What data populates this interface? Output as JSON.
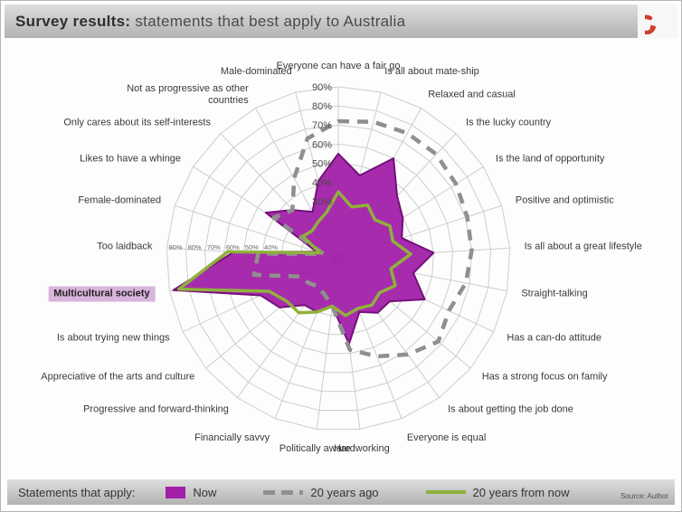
{
  "header": {
    "title_bold": "Survey results:",
    "title_rest": " statements that best apply to Australia"
  },
  "logo": {
    "color": "#cf3e2e"
  },
  "chart_data": {
    "type": "radar",
    "title": "Survey results: statements that best apply to Australia",
    "max": 90,
    "rings": [
      10,
      20,
      30,
      40,
      50,
      60,
      70,
      80,
      90
    ],
    "axis_ticks_top": [
      "90%",
      "80%",
      "70%",
      "60%",
      "50%",
      "40%",
      "30%"
    ],
    "axis_ticks_left": [
      "90%",
      "80%",
      "70%",
      "60%",
      "50%",
      "40%"
    ],
    "grid": true,
    "legend_position": "bottom",
    "highlighted_category": "Multicultural society",
    "categories": [
      "Everyone can have a fair go",
      "Is all about mate-ship",
      "Relaxed and casual",
      "Is the lucky country",
      "Is the land of opportunity",
      "Positive and optimistic",
      "Is all about a great lifestyle",
      "Straight-talking",
      "Has a can-do attitude",
      "Has a strong focus on family",
      "Is about getting the job done",
      "Everyone is equal",
      "Hardworking",
      "Politically aware",
      "Financially savvy",
      "Progressive and forward-thinking",
      "Appreciative of the arts and culture",
      "Is about trying new things",
      "Multicultural society",
      "Too laidback",
      "Female-dominated",
      "Likes to have a whinge",
      "Only cares about its self-interests",
      "Not as progressive as other countries",
      "Male-dominated"
    ],
    "series": [
      {
        "name": "Now",
        "style": "filled",
        "color": "#a21fa8",
        "stroke": "#741079",
        "values": [
          55,
          45,
          60,
          45,
          40,
          35,
          50,
          40,
          50,
          35,
          35,
          30,
          45,
          25,
          30,
          30,
          40,
          45,
          88,
          55,
          12,
          45,
          35,
          28,
          42
        ]
      },
      {
        "name": "20 years ago",
        "style": "dashed",
        "color": "#8f8f8f",
        "values": [
          72,
          74,
          75,
          75,
          73,
          71,
          70,
          68,
          64,
          68,
          62,
          55,
          48,
          25,
          20,
          18,
          20,
          22,
          45,
          42,
          8,
          40,
          35,
          48,
          65
        ]
      },
      {
        "name": "20 years from now",
        "style": "line",
        "color": "#8fb03c",
        "values": [
          35,
          28,
          32,
          28,
          32,
          30,
          38,
          28,
          33,
          28,
          30,
          28,
          30,
          25,
          30,
          35,
          35,
          40,
          85,
          58,
          10,
          22,
          20,
          22,
          25
        ]
      }
    ]
  },
  "footer": {
    "legend_title": "Statements that apply:",
    "source": "Source: Author"
  }
}
